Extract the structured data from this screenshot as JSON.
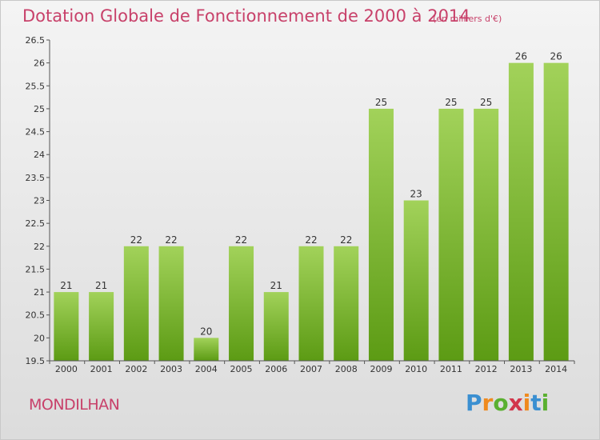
{
  "title": "Dotation Globale de Fonctionnement de 2000 à 2014",
  "unit_note": "(en milliers d'€)",
  "commune": "MONDILHAN",
  "brand": {
    "letters": [
      "P",
      "r",
      "o",
      "x",
      "i",
      "t",
      "i"
    ],
    "colors": [
      "#3a8fd1",
      "#ef8a1e",
      "#5ab030",
      "#d2364b",
      "#ef8a1e",
      "#3a8fd1",
      "#5ab030"
    ]
  },
  "colors": {
    "bar_top": "#a2d25a",
    "bar_bottom": "#5c9b14",
    "text_accent": "#c8416a"
  },
  "chart_data": {
    "type": "bar",
    "categories": [
      "2000",
      "2001",
      "2002",
      "2003",
      "2004",
      "2005",
      "2006",
      "2007",
      "2008",
      "2009",
      "2010",
      "2011",
      "2012",
      "2013",
      "2014"
    ],
    "values": [
      21,
      21,
      22,
      22,
      20,
      22,
      21,
      22,
      22,
      25,
      23,
      25,
      25,
      26,
      26
    ],
    "data_labels": [
      "21",
      "21",
      "22",
      "22",
      "20",
      "22",
      "21",
      "22",
      "22",
      "25",
      "23",
      "25",
      "25",
      "26",
      "26"
    ],
    "ylim": [
      19.5,
      26.5
    ],
    "yticks": [
      "19.5",
      "20",
      "20.5",
      "21",
      "21.5",
      "22",
      "22.5",
      "23",
      "23.5",
      "24",
      "24.5",
      "25",
      "25.5",
      "26",
      "26.5"
    ],
    "grid": false,
    "legend": "none"
  }
}
